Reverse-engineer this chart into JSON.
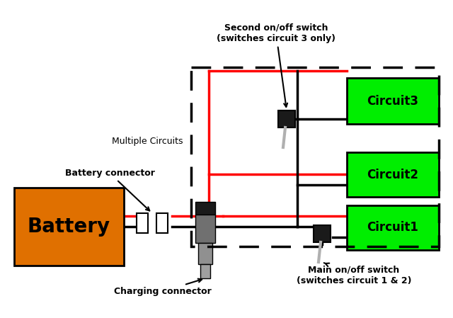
{
  "fig_bg": "#ffffff",
  "battery_color": "#e07000",
  "circuit_color": "#00ee00",
  "wire_red": "#ff0000",
  "wire_black": "#000000",
  "title": "Second on/off switch\n(switches circuit 3 only)",
  "label_battery_connector": "Battery connector",
  "label_charging_connector": "Charging connector",
  "label_main_switch": "Main on/off switch\n(switches circuit 1 & 2)",
  "label_multiple_circuits": "Multiple Circuits",
  "label_circuit1": "Circuit1",
  "label_circuit2": "Circuit2",
  "label_circuit3": "Circuit3",
  "label_battery": "Battery"
}
